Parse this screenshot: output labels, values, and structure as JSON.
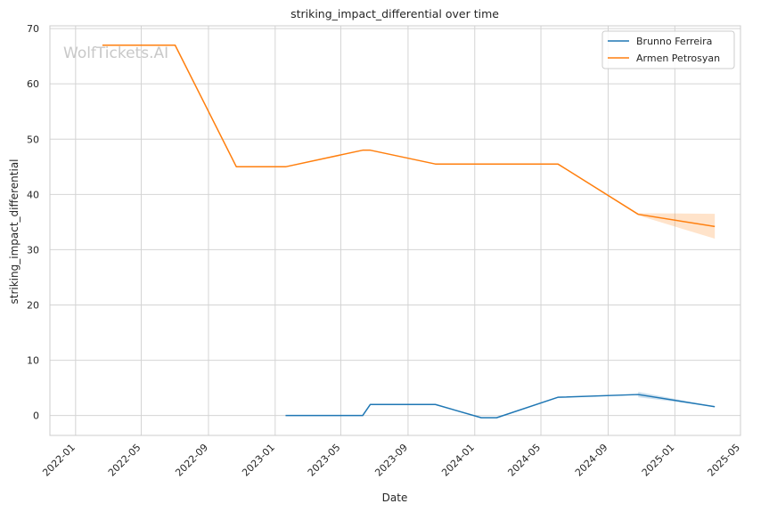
{
  "watermark": "WolfTickets.AI",
  "chart_data": {
    "type": "line",
    "title": "striking_impact_differential over time",
    "xlabel": "Date",
    "ylabel": "striking_impact_differential",
    "x_axis_type": "date",
    "xlim": [
      "2021-11-15",
      "2025-05-01"
    ],
    "ylim": [
      -3.6,
      70.5
    ],
    "x_ticks": [
      "2022-01",
      "2022-05",
      "2022-09",
      "2023-01",
      "2023-05",
      "2023-09",
      "2024-01",
      "2024-05",
      "2024-09",
      "2025-01",
      "2025-05"
    ],
    "y_ticks": [
      0,
      10,
      20,
      30,
      40,
      50,
      60,
      70
    ],
    "grid": true,
    "legend_position": "top-right",
    "series": [
      {
        "name": "Brunno Ferreira",
        "color": "#1f77b4",
        "points": [
          {
            "x": "2023-01-20",
            "y": 0
          },
          {
            "x": "2023-06-10",
            "y": 0
          },
          {
            "x": "2023-06-24",
            "y": 2
          },
          {
            "x": "2023-10-21",
            "y": 2
          },
          {
            "x": "2024-01-13",
            "y": -0.4
          },
          {
            "x": "2024-02-10",
            "y": -0.4
          },
          {
            "x": "2024-06-01",
            "y": 3.3
          },
          {
            "x": "2024-10-26",
            "y": 3.8
          },
          {
            "x": "2025-03-15",
            "y": 1.6
          }
        ],
        "band": [
          {
            "x": "2024-10-26",
            "lower": 3.3,
            "upper": 4.3
          },
          {
            "x": "2025-03-15",
            "lower": 1.6,
            "upper": 1.6
          }
        ]
      },
      {
        "name": "Armen Petrosyan",
        "color": "#ff7f0e",
        "points": [
          {
            "x": "2022-02-19",
            "y": 67
          },
          {
            "x": "2022-07-02",
            "y": 67
          },
          {
            "x": "2022-10-22",
            "y": 45
          },
          {
            "x": "2023-01-20",
            "y": 45
          },
          {
            "x": "2023-06-10",
            "y": 48
          },
          {
            "x": "2023-06-24",
            "y": 48
          },
          {
            "x": "2023-10-21",
            "y": 45.5
          },
          {
            "x": "2024-06-01",
            "y": 45.5
          },
          {
            "x": "2024-10-26",
            "y": 36.4
          },
          {
            "x": "2025-03-15",
            "y": 34.2
          }
        ],
        "band": [
          {
            "x": "2024-10-26",
            "lower": 36.2,
            "upper": 36.6
          },
          {
            "x": "2025-03-15",
            "lower": 32.0,
            "upper": 36.5
          }
        ]
      }
    ]
  }
}
